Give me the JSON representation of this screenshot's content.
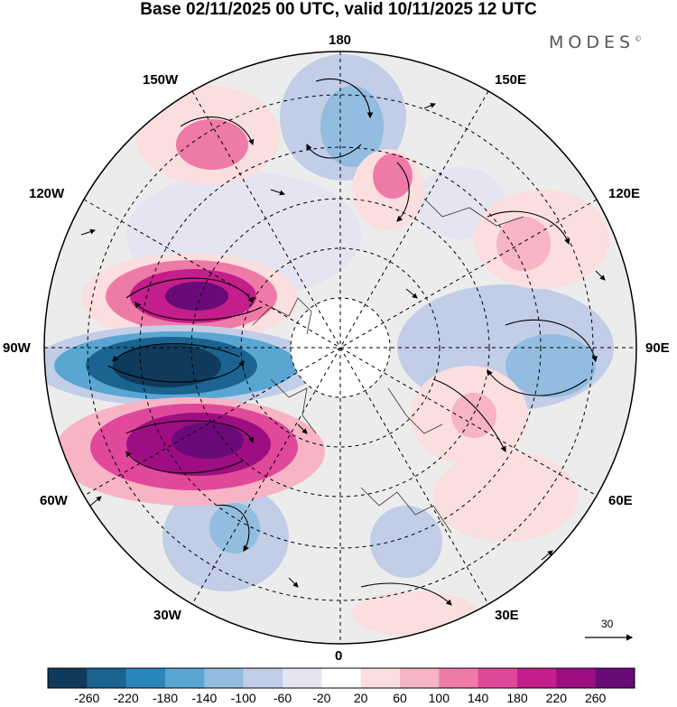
{
  "title": "Base 02/11/2025 00 UTC, valid 10/11/2025 12 UTC",
  "brand": "MODES",
  "brand_mark": "©",
  "longitude_labels": {
    "n180": "180",
    "w150": "150W",
    "e150": "150E",
    "w120": "120W",
    "e120": "120E",
    "w90": "90W",
    "e90": "90E",
    "w60": "60W",
    "e60": "60E",
    "w30": "30W",
    "e30": "30E",
    "s0": "0"
  },
  "reference_vector": "30",
  "colorbar": {
    "ticks": [
      "-260",
      "-220",
      "-180",
      "-140",
      "-100",
      "-60",
      "-20",
      "20",
      "60",
      "100",
      "140",
      "180",
      "220",
      "260"
    ],
    "colors": [
      "#0f3a5c",
      "#1b6391",
      "#2b86bd",
      "#5aa6d3",
      "#92bde0",
      "#c2cde8",
      "#e4e4f2",
      "#ffffff",
      "#fbdede",
      "#f6b4c4",
      "#ee7aa8",
      "#e0489a",
      "#c41d8c",
      "#9e0e83",
      "#6a0a78"
    ]
  },
  "anomaly_blobs": [
    {
      "label": "strong negative",
      "color": "#0f3a5c"
    },
    {
      "label": "strong positive north",
      "color": "#9e0e83"
    },
    {
      "label": "strong positive south",
      "color": "#9e0e83"
    }
  ]
}
